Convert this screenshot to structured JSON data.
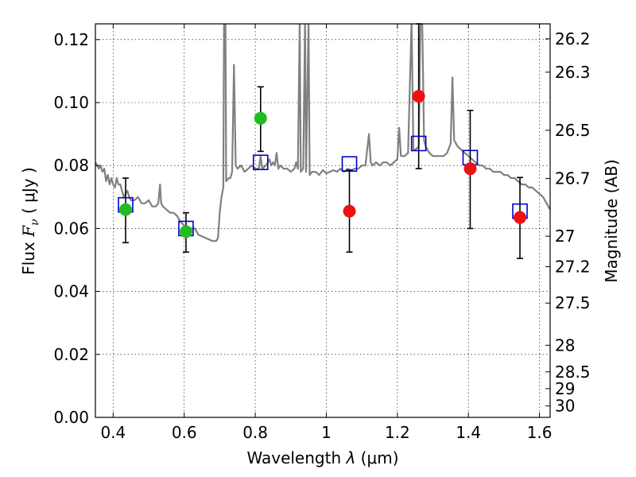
{
  "chart_data": {
    "type": "scatter",
    "xlabel": "Wavelength λ (μm)",
    "ylabel": "Flux F_ν (μJy)",
    "ylabel_parts": {
      "pre": "Flux ",
      "F": "F",
      "nu": "ν",
      "post": " ( μJy )"
    },
    "xlabel_parts": {
      "pre": "Wavelength ",
      "lambda": "λ",
      "unit": " (μm)"
    },
    "y2label": "Magnitude (AB)",
    "xlim": [
      0.35,
      1.63
    ],
    "ylim": [
      0.0,
      0.125
    ],
    "grid": true,
    "x_ticks": [
      {
        "value": 0.4,
        "label": "0.4"
      },
      {
        "value": 0.6,
        "label": "0.6"
      },
      {
        "value": 0.8,
        "label": "0.8"
      },
      {
        "value": 1.0,
        "label": "1"
      },
      {
        "value": 1.2,
        "label": "1.2"
      },
      {
        "value": 1.4,
        "label": "1.4"
      },
      {
        "value": 1.6,
        "label": "1.6"
      }
    ],
    "y_ticks": [
      {
        "value": 0.0,
        "label": "0.00"
      },
      {
        "value": 0.02,
        "label": "0.02"
      },
      {
        "value": 0.04,
        "label": "0.04"
      },
      {
        "value": 0.06,
        "label": "0.06"
      },
      {
        "value": 0.08,
        "label": "0.08"
      },
      {
        "value": 0.1,
        "label": "0.10"
      },
      {
        "value": 0.12,
        "label": "0.12"
      }
    ],
    "y2_ticks": [
      {
        "value": 26.2,
        "label": "26.2"
      },
      {
        "value": 26.3,
        "label": "26.3"
      },
      {
        "value": 26.5,
        "label": "26.5"
      },
      {
        "value": 26.7,
        "label": "26.7"
      },
      {
        "value": 27.0,
        "label": "27"
      },
      {
        "value": 27.2,
        "label": "27.2"
      },
      {
        "value": 27.5,
        "label": "27.5"
      },
      {
        "value": 28.0,
        "label": "28"
      },
      {
        "value": 28.5,
        "label": "28.5"
      },
      {
        "value": 29.0,
        "label": "29"
      },
      {
        "value": 30.0,
        "label": "30"
      }
    ],
    "model_spectrum": {
      "color": "#808080",
      "points": [
        [
          0.35,
          0.081
        ],
        [
          0.36,
          0.079
        ],
        [
          0.365,
          0.08
        ],
        [
          0.37,
          0.078
        ],
        [
          0.375,
          0.079
        ],
        [
          0.38,
          0.075
        ],
        [
          0.385,
          0.077
        ],
        [
          0.39,
          0.074
        ],
        [
          0.395,
          0.076
        ],
        [
          0.4,
          0.074
        ],
        [
          0.405,
          0.073
        ],
        [
          0.41,
          0.076
        ],
        [
          0.415,
          0.074
        ],
        [
          0.42,
          0.074
        ],
        [
          0.425,
          0.072
        ],
        [
          0.43,
          0.07
        ],
        [
          0.435,
          0.071
        ],
        [
          0.44,
          0.072
        ],
        [
          0.445,
          0.07
        ],
        [
          0.45,
          0.069
        ],
        [
          0.46,
          0.069
        ],
        [
          0.47,
          0.07
        ],
        [
          0.48,
          0.068
        ],
        [
          0.49,
          0.068
        ],
        [
          0.5,
          0.069
        ],
        [
          0.51,
          0.067
        ],
        [
          0.52,
          0.067
        ],
        [
          0.527,
          0.068
        ],
        [
          0.532,
          0.074
        ],
        [
          0.535,
          0.068
        ],
        [
          0.54,
          0.067
        ],
        [
          0.55,
          0.066
        ],
        [
          0.56,
          0.065
        ],
        [
          0.57,
          0.065
        ],
        [
          0.58,
          0.064
        ],
        [
          0.59,
          0.062
        ],
        [
          0.6,
          0.061
        ],
        [
          0.61,
          0.06
        ],
        [
          0.62,
          0.06
        ],
        [
          0.63,
          0.06
        ],
        [
          0.64,
          0.058
        ],
        [
          0.65,
          0.0575
        ],
        [
          0.66,
          0.057
        ],
        [
          0.67,
          0.0565
        ],
        [
          0.68,
          0.056
        ],
        [
          0.69,
          0.056
        ],
        [
          0.695,
          0.057
        ],
        [
          0.7,
          0.065
        ],
        [
          0.705,
          0.07
        ],
        [
          0.71,
          0.073
        ],
        [
          0.712,
          0.126
        ],
        [
          0.716,
          0.126
        ],
        [
          0.718,
          0.075
        ],
        [
          0.725,
          0.076
        ],
        [
          0.73,
          0.076
        ],
        [
          0.735,
          0.078
        ],
        [
          0.74,
          0.112
        ],
        [
          0.745,
          0.08
        ],
        [
          0.75,
          0.079
        ],
        [
          0.76,
          0.08
        ],
        [
          0.77,
          0.078
        ],
        [
          0.78,
          0.079
        ],
        [
          0.79,
          0.08
        ],
        [
          0.8,
          0.079
        ],
        [
          0.81,
          0.079
        ],
        [
          0.815,
          0.083
        ],
        [
          0.82,
          0.079
        ],
        [
          0.83,
          0.08
        ],
        [
          0.84,
          0.082
        ],
        [
          0.845,
          0.08
        ],
        [
          0.85,
          0.081
        ],
        [
          0.855,
          0.08
        ],
        [
          0.86,
          0.084
        ],
        [
          0.865,
          0.079
        ],
        [
          0.87,
          0.08
        ],
        [
          0.88,
          0.079
        ],
        [
          0.89,
          0.079
        ],
        [
          0.9,
          0.078
        ],
        [
          0.91,
          0.079
        ],
        [
          0.915,
          0.081
        ],
        [
          0.92,
          0.079
        ],
        [
          0.925,
          0.126
        ],
        [
          0.928,
          0.078
        ],
        [
          0.935,
          0.079
        ],
        [
          0.94,
          0.126
        ],
        [
          0.943,
          0.078
        ],
        [
          0.95,
          0.126
        ],
        [
          0.953,
          0.077
        ],
        [
          0.96,
          0.078
        ],
        [
          0.97,
          0.078
        ],
        [
          0.98,
          0.077
        ],
        [
          0.99,
          0.0785
        ],
        [
          1.0,
          0.0775
        ],
        [
          1.01,
          0.078
        ],
        [
          1.02,
          0.0785
        ],
        [
          1.03,
          0.078
        ],
        [
          1.04,
          0.079
        ],
        [
          1.05,
          0.078
        ],
        [
          1.06,
          0.079
        ],
        [
          1.07,
          0.0785
        ],
        [
          1.08,
          0.079
        ],
        [
          1.09,
          0.079
        ],
        [
          1.1,
          0.08
        ],
        [
          1.11,
          0.08
        ],
        [
          1.12,
          0.09
        ],
        [
          1.125,
          0.081
        ],
        [
          1.13,
          0.08
        ],
        [
          1.14,
          0.081
        ],
        [
          1.15,
          0.08
        ],
        [
          1.16,
          0.081
        ],
        [
          1.17,
          0.081
        ],
        [
          1.18,
          0.08
        ],
        [
          1.19,
          0.081
        ],
        [
          1.2,
          0.082
        ],
        [
          1.205,
          0.092
        ],
        [
          1.21,
          0.083
        ],
        [
          1.22,
          0.083
        ],
        [
          1.23,
          0.084
        ],
        [
          1.24,
          0.126
        ],
        [
          1.245,
          0.085
        ],
        [
          1.25,
          0.085
        ],
        [
          1.26,
          0.086
        ],
        [
          1.265,
          0.126
        ],
        [
          1.27,
          0.126
        ],
        [
          1.275,
          0.088
        ],
        [
          1.28,
          0.086
        ],
        [
          1.29,
          0.084
        ],
        [
          1.3,
          0.083
        ],
        [
          1.31,
          0.083
        ],
        [
          1.32,
          0.083
        ],
        [
          1.33,
          0.083
        ],
        [
          1.34,
          0.084
        ],
        [
          1.35,
          0.087
        ],
        [
          1.355,
          0.108
        ],
        [
          1.36,
          0.088
        ],
        [
          1.37,
          0.086
        ],
        [
          1.38,
          0.085
        ],
        [
          1.39,
          0.084
        ],
        [
          1.4,
          0.083
        ],
        [
          1.41,
          0.082
        ],
        [
          1.42,
          0.081
        ],
        [
          1.43,
          0.08
        ],
        [
          1.44,
          0.08
        ],
        [
          1.45,
          0.079
        ],
        [
          1.46,
          0.079
        ],
        [
          1.47,
          0.078
        ],
        [
          1.48,
          0.078
        ],
        [
          1.49,
          0.078
        ],
        [
          1.5,
          0.077
        ],
        [
          1.51,
          0.077
        ],
        [
          1.52,
          0.076
        ],
        [
          1.53,
          0.076
        ],
        [
          1.54,
          0.075
        ],
        [
          1.55,
          0.074
        ],
        [
          1.56,
          0.074
        ],
        [
          1.57,
          0.073
        ],
        [
          1.58,
          0.073
        ],
        [
          1.59,
          0.072
        ],
        [
          1.6,
          0.071
        ],
        [
          1.61,
          0.07
        ],
        [
          1.62,
          0.068
        ],
        [
          1.63,
          0.066
        ]
      ]
    },
    "model_photometry": {
      "marker": "open-square",
      "color": "#0000cc",
      "points": [
        [
          0.435,
          0.0675
        ],
        [
          0.605,
          0.06
        ],
        [
          0.815,
          0.081
        ],
        [
          1.065,
          0.0805
        ],
        [
          1.26,
          0.087
        ],
        [
          1.405,
          0.0825
        ],
        [
          1.545,
          0.0655
        ]
      ]
    },
    "observed_green": {
      "marker": "filled-circle",
      "color": "#22bb22",
      "points": [
        {
          "x": 0.435,
          "y": 0.066,
          "yerr_low": 0.0555,
          "yerr_high": 0.076
        },
        {
          "x": 0.605,
          "y": 0.059,
          "yerr_low": 0.0525,
          "yerr_high": 0.065
        },
        {
          "x": 0.815,
          "y": 0.095,
          "yerr_low": 0.0845,
          "yerr_high": 0.105
        }
      ]
    },
    "observed_red": {
      "marker": "filled-circle",
      "color": "#ee1111",
      "points": [
        {
          "x": 1.065,
          "y": 0.0655,
          "yerr_low": 0.0525,
          "yerr_high": 0.0785
        },
        {
          "x": 1.26,
          "y": 0.102,
          "yerr_low": 0.079,
          "yerr_high": 0.125
        },
        {
          "x": 1.405,
          "y": 0.079,
          "yerr_low": 0.06,
          "yerr_high": 0.0975
        },
        {
          "x": 1.545,
          "y": 0.0635,
          "yerr_low": 0.0505,
          "yerr_high": 0.0762
        }
      ]
    }
  }
}
